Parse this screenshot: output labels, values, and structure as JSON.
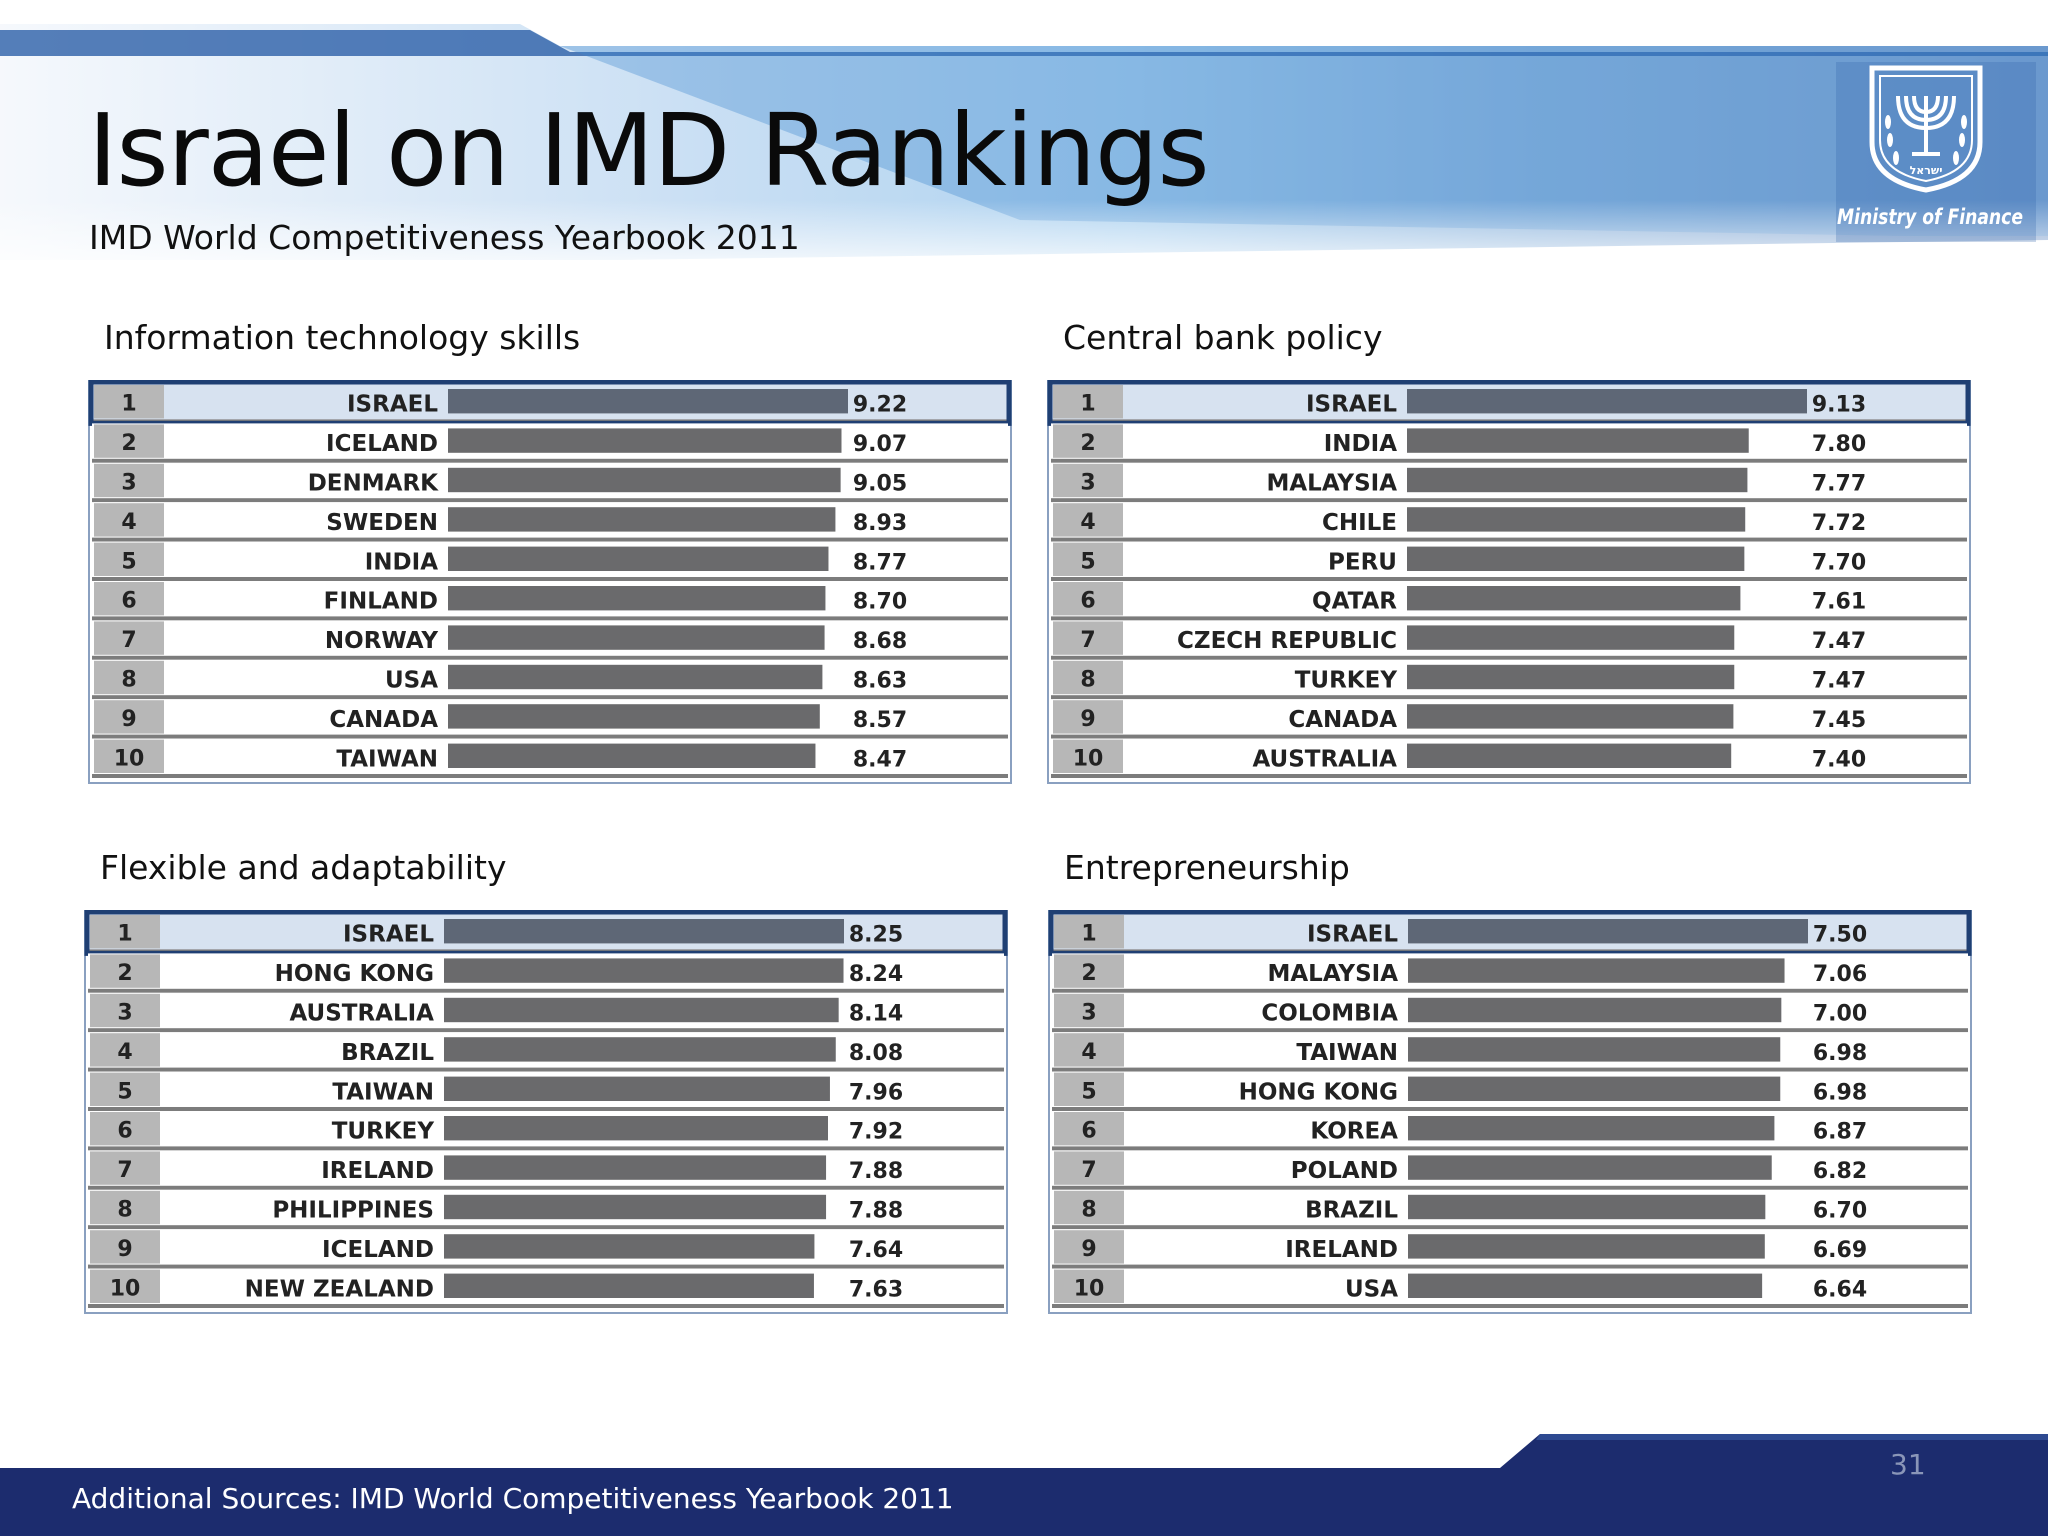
{
  "header": {
    "title": "Israel on IMD Rankings",
    "subtitle": "IMD World Competitiveness Yearbook 2011",
    "logo_label": "Ministry of Finance",
    "logo_hebrew": "ישראל"
  },
  "colors": {
    "header_blue": "#2c66b0",
    "footer_navy": "#1c2c6e",
    "bar_gray": "#6a6a6c",
    "highlight_row": "#d7e2f0",
    "highlight_border": "#1f3f73",
    "rank_cell": "#b7b7b7"
  },
  "chart_data": [
    {
      "type": "bar",
      "orientation": "horizontal",
      "title": "Information technology skills",
      "categories": [
        "ISRAEL",
        "ICELAND",
        "DENMARK",
        "SWEDEN",
        "INDIA",
        "FINLAND",
        "NORWAY",
        "USA",
        "CANADA",
        "TAIWAN"
      ],
      "ranks": [
        "1",
        "2",
        "3",
        "4",
        "5",
        "6",
        "7",
        "8",
        "9",
        "10"
      ],
      "values": [
        9.22,
        9.07,
        9.05,
        8.93,
        8.77,
        8.7,
        8.68,
        8.63,
        8.57,
        8.47
      ],
      "labels": [
        "9.22",
        "9.07",
        "9.05",
        "8.93",
        "8.77",
        "8.70",
        "8.68",
        "8.63",
        "8.57",
        "8.47"
      ],
      "highlight": "ISRAEL"
    },
    {
      "type": "bar",
      "orientation": "horizontal",
      "title": "Central bank policy",
      "categories": [
        "ISRAEL",
        "INDIA",
        "MALAYSIA",
        "CHILE",
        "PERU",
        "QATAR",
        "CZECH REPUBLIC",
        "TURKEY",
        "CANADA",
        "AUSTRALIA"
      ],
      "ranks": [
        "1",
        "2",
        "3",
        "4",
        "5",
        "6",
        "7",
        "8",
        "9",
        "10"
      ],
      "values": [
        9.13,
        7.8,
        7.77,
        7.72,
        7.7,
        7.61,
        7.47,
        7.47,
        7.45,
        7.4
      ],
      "labels": [
        "9.13",
        "7.80",
        "7.77",
        "7.72",
        "7.70",
        "7.61",
        "7.47",
        "7.47",
        "7.45",
        "7.40"
      ],
      "highlight": "ISRAEL"
    },
    {
      "type": "bar",
      "orientation": "horizontal",
      "title": "Flexible and adaptability",
      "categories": [
        "ISRAEL",
        "HONG KONG",
        "AUSTRALIA",
        "BRAZIL",
        "TAIWAN",
        "TURKEY",
        "IRELAND",
        "PHILIPPINES",
        "ICELAND",
        "NEW ZEALAND"
      ],
      "ranks": [
        "1",
        "2",
        "3",
        "4",
        "5",
        "6",
        "7",
        "8",
        "9",
        "10"
      ],
      "values": [
        8.25,
        8.24,
        8.14,
        8.08,
        7.96,
        7.92,
        7.88,
        7.88,
        7.64,
        7.63
      ],
      "labels": [
        "8.25",
        "8.24",
        "8.14",
        "8.08",
        "7.96",
        "7.92",
        "7.88",
        "7.88",
        "7.64",
        "7.63"
      ],
      "highlight": "ISRAEL"
    },
    {
      "type": "bar",
      "orientation": "horizontal",
      "title": "Entrepreneurship",
      "categories": [
        "ISRAEL",
        "MALAYSIA",
        "COLOMBIA",
        "TAIWAN",
        "HONG KONG",
        "KOREA",
        "POLAND",
        "BRAZIL",
        "IRELAND",
        "USA"
      ],
      "ranks": [
        "1",
        "2",
        "3",
        "4",
        "5",
        "6",
        "7",
        "8",
        "9",
        "10"
      ],
      "values": [
        7.5,
        7.06,
        7.0,
        6.98,
        6.98,
        6.87,
        6.82,
        6.7,
        6.69,
        6.64
      ],
      "labels": [
        "7.50",
        "7.06",
        "7.00",
        "6.98",
        "6.98",
        "6.87",
        "6.82",
        "6.70",
        "6.69",
        "6.64"
      ],
      "highlight": "ISRAEL"
    }
  ],
  "footer": {
    "page_number": "31",
    "sources": "Additional Sources: IMD World Competitiveness Yearbook 2011"
  }
}
